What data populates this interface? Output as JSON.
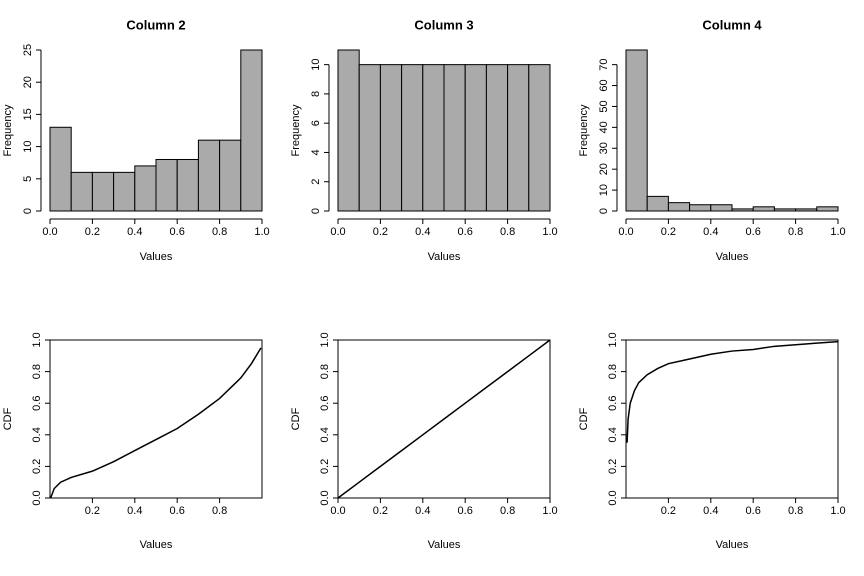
{
  "chart_data": [
    {
      "type": "histogram",
      "title": "Column 2",
      "xlabel": "Values",
      "ylabel": "Frequency",
      "bins": [
        0,
        0.1,
        0.2,
        0.3,
        0.4,
        0.5,
        0.6,
        0.7,
        0.8,
        0.9,
        1
      ],
      "values": [
        13,
        6,
        6,
        6,
        7,
        8,
        8,
        11,
        11,
        25
      ],
      "color": "#aaaaaa",
      "xlim": [
        0,
        1
      ],
      "xticks": [
        {
          "value": 0,
          "label": "0.0"
        },
        0.2,
        0.4,
        0.6,
        0.8,
        {
          "value": 1,
          "label": "1.0"
        }
      ],
      "ylim": [
        0,
        25
      ],
      "yticks": [
        0,
        5,
        10,
        15,
        20,
        25
      ]
    },
    {
      "type": "histogram",
      "title": "Column 3",
      "xlabel": "Values",
      "ylabel": "Frequency",
      "bins": [
        0,
        0.1,
        0.2,
        0.3,
        0.4,
        0.5,
        0.6,
        0.7,
        0.8,
        0.9,
        1
      ],
      "values": [
        11,
        10,
        10,
        10,
        10,
        10,
        10,
        10,
        10,
        10
      ],
      "color": "#aaaaaa",
      "xlim": [
        0,
        1
      ],
      "xticks": [
        {
          "value": 0,
          "label": "0.0"
        },
        0.2,
        0.4,
        0.6,
        0.8,
        {
          "value": 1,
          "label": "1.0"
        }
      ],
      "ylim": [
        0,
        11
      ],
      "yticks": [
        0,
        2,
        4,
        6,
        8,
        10
      ]
    },
    {
      "type": "histogram",
      "title": "Column 4",
      "xlabel": "Values",
      "ylabel": "Frequency",
      "bins": [
        0,
        0.1,
        0.2,
        0.3,
        0.4,
        0.5,
        0.6,
        0.7,
        0.8,
        0.9,
        1
      ],
      "values": [
        77,
        7,
        4,
        3,
        3,
        1,
        2,
        1,
        1,
        2
      ],
      "color": "#aaaaaa",
      "xlim": [
        0,
        1
      ],
      "xticks": [
        {
          "value": 0,
          "label": "0.0"
        },
        0.2,
        0.4,
        0.6,
        0.8,
        {
          "value": 1,
          "label": "1.0"
        }
      ],
      "ylim": [
        0,
        77
      ],
      "yticks": [
        0,
        10,
        20,
        30,
        40,
        50,
        60,
        70
      ]
    },
    {
      "type": "line",
      "xlabel": "Values",
      "ylabel": "CDF",
      "color": "#000000",
      "x": [
        0.003,
        0.02,
        0.05,
        0.1,
        0.2,
        0.3,
        0.4,
        0.5,
        0.6,
        0.7,
        0.8,
        0.9,
        0.95,
        0.995
      ],
      "values": [
        0.0,
        0.06,
        0.1,
        0.13,
        0.17,
        0.23,
        0.3,
        0.37,
        0.44,
        0.53,
        0.63,
        0.76,
        0.85,
        0.95
      ],
      "xlim": [
        0,
        1
      ],
      "xticks": [
        0.2,
        0.4,
        0.6,
        0.8
      ],
      "ylim": [
        0,
        1
      ],
      "yticks": [
        {
          "value": 0,
          "label": "0.0"
        },
        0.2,
        0.4,
        0.6,
        0.8,
        {
          "value": 1,
          "label": "1.0"
        }
      ]
    },
    {
      "type": "line",
      "xlabel": "Values",
      "ylabel": "CDF",
      "color": "#000000",
      "x": [
        0,
        0.1,
        0.2,
        0.3,
        0.4,
        0.5,
        0.6,
        0.7,
        0.8,
        0.9,
        1
      ],
      "values": [
        0,
        0.1,
        0.2,
        0.3,
        0.4,
        0.5,
        0.6,
        0.7,
        0.8,
        0.9,
        1
      ],
      "xlim": [
        0,
        1
      ],
      "xticks": [
        {
          "value": 0,
          "label": "0.0"
        },
        0.2,
        0.4,
        0.6,
        0.8,
        {
          "value": 1,
          "label": "1.0"
        }
      ],
      "ylim": [
        0,
        1
      ],
      "yticks": [
        {
          "value": 0,
          "label": "0.0"
        },
        0.2,
        0.4,
        0.6,
        0.8,
        {
          "value": 1,
          "label": "1.0"
        }
      ]
    },
    {
      "type": "line",
      "xlabel": "Values",
      "ylabel": "CDF",
      "color": "#000000",
      "x": [
        0.005,
        0.01,
        0.02,
        0.04,
        0.06,
        0.1,
        0.15,
        0.2,
        0.3,
        0.4,
        0.5,
        0.6,
        0.7,
        0.8,
        0.9,
        1
      ],
      "values": [
        0.35,
        0.5,
        0.6,
        0.68,
        0.73,
        0.78,
        0.82,
        0.85,
        0.88,
        0.91,
        0.93,
        0.94,
        0.96,
        0.97,
        0.98,
        0.99
      ],
      "xlim": [
        0,
        1
      ],
      "xticks": [
        0.2,
        0.4,
        0.6,
        0.8,
        {
          "value": 1,
          "label": "1.0"
        }
      ],
      "ylim": [
        0,
        1
      ],
      "yticks": [
        {
          "value": 0,
          "label": "0.0"
        },
        0.2,
        0.4,
        0.6,
        0.8,
        {
          "value": 1,
          "label": "1.0"
        }
      ]
    }
  ]
}
